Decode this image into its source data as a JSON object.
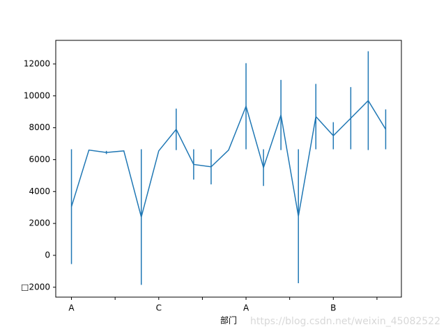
{
  "chart_data": {
    "type": "errorbar-line",
    "x_label": "部门",
    "watermark": "https://blog.csdn.net/weixin_45082522",
    "x": [
      0,
      1,
      2,
      3,
      4,
      5,
      6,
      7,
      8,
      9,
      10,
      11,
      12,
      13,
      14,
      15,
      16,
      17,
      18
    ],
    "series": [
      {
        "color": "#1f77b4",
        "values": [
          3050,
          6600,
          6450,
          6550,
          2400,
          6550,
          7900,
          5700,
          5550,
          6600,
          9350,
          5500,
          8800,
          2450,
          8700,
          7500,
          8600,
          9700,
          7900
        ],
        "errors": [
          3600,
          0,
          100,
          0,
          4250,
          0,
          1300,
          950,
          1100,
          0,
          2700,
          1150,
          2200,
          4200,
          2050,
          850,
          1950,
          3100,
          1250
        ]
      }
    ],
    "xlim": [
      -0.9,
      18.9
    ],
    "xticks": [
      {
        "value": 0,
        "label": "A"
      },
      {
        "value": 2.5,
        "label": null
      },
      {
        "value": 5,
        "label": "C"
      },
      {
        "value": 7.5,
        "label": null
      },
      {
        "value": 10,
        "label": "A"
      },
      {
        "value": 12.5,
        "label": null
      },
      {
        "value": 15,
        "label": "B"
      },
      {
        "value": 17.5,
        "label": null
      }
    ],
    "ylim": [
      -2620,
      13480
    ],
    "yticks": [
      {
        "value": -2000,
        "label": "□2000"
      },
      0,
      2000,
      4000,
      6000,
      8000,
      10000,
      12000
    ]
  }
}
